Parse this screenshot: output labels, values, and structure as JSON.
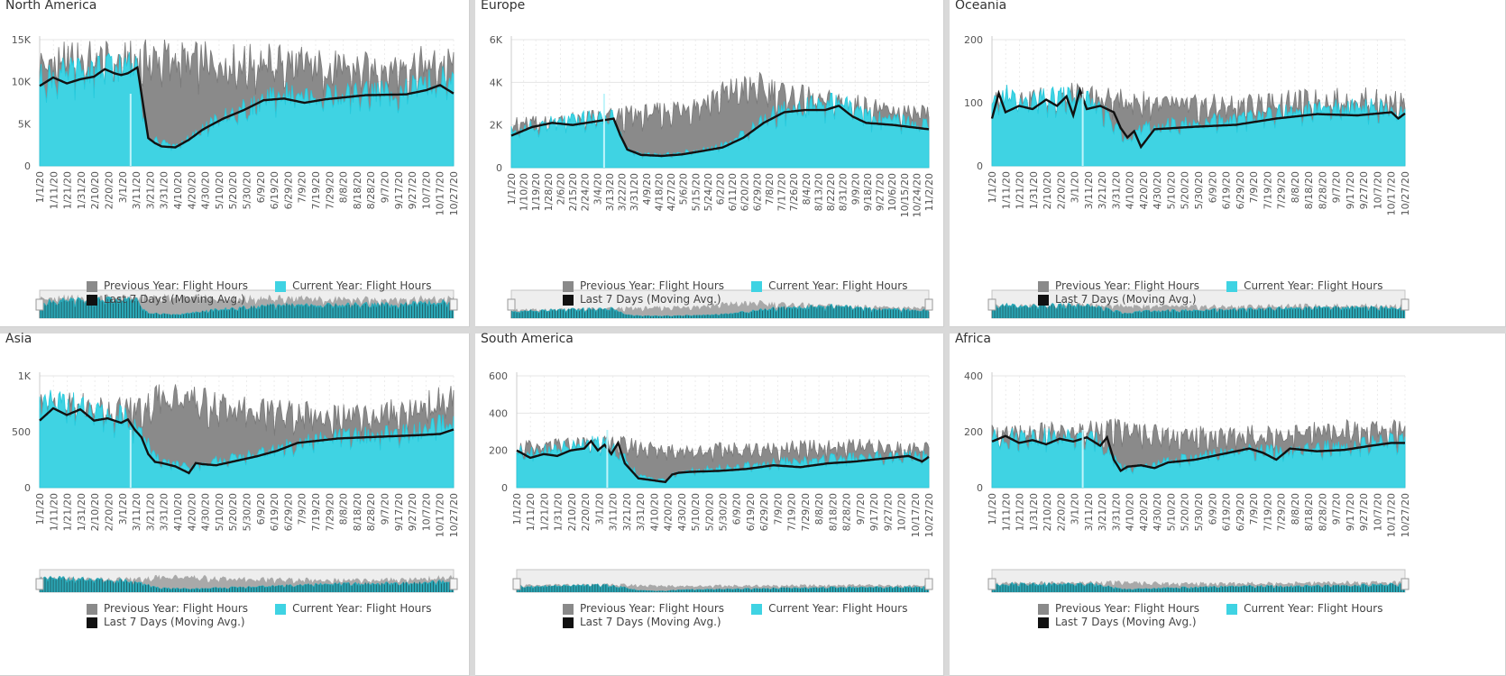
{
  "colors": {
    "previous": "#8a8a8a",
    "current": "#3fd3e3",
    "average": "#111111",
    "grid": "#e4e4e4",
    "navigator_bg": "#eeeeee"
  },
  "chart_data": [
    {
      "type": "area",
      "title": "North America",
      "y_ticks": [
        "0",
        "5K",
        "10K",
        "15K"
      ],
      "ylim": [
        0,
        15000
      ],
      "x_ticks": [
        "1/1/20",
        "1/11/20",
        "1/21/20",
        "1/31/20",
        "2/10/20",
        "2/20/20",
        "3/1/20",
        "3/11/20",
        "3/21/20",
        "3/31/20",
        "4/10/20",
        "4/20/20",
        "4/30/20",
        "5/10/20",
        "5/20/20",
        "5/30/20",
        "6/9/20",
        "6/19/20",
        "6/29/20",
        "7/9/20",
        "7/19/20",
        "7/29/20",
        "8/8/20",
        "8/18/20",
        "8/28/20",
        "9/7/20",
        "9/17/20",
        "9/27/20",
        "10/7/20",
        "10/17/20",
        "10/27/20"
      ],
      "days": 306,
      "series": [
        {
          "name": "Previous Year: Flight Hours",
          "x_day": [
            0,
            30,
            60,
            75,
            90,
            120,
            150,
            180,
            210,
            240,
            270,
            305
          ],
          "values": [
            11500,
            12000,
            11800,
            12000,
            12200,
            11800,
            11600,
            11700,
            11200,
            10900,
            11400,
            11300
          ]
        },
        {
          "name": "Current Year: Flight Hours",
          "x_day": [
            0,
            30,
            60,
            72,
            76,
            80,
            90,
            100,
            110,
            120,
            135,
            150,
            165,
            180,
            210,
            240,
            270,
            300,
            305
          ],
          "values": [
            9800,
            10800,
            11200,
            11800,
            7000,
            3200,
            2600,
            2300,
            3000,
            4200,
            5500,
            6400,
            7300,
            8200,
            7800,
            8300,
            8600,
            9700,
            9200
          ]
        },
        {
          "name": "Last 7 Days (Moving Avg.)",
          "x_day": [
            0,
            10,
            20,
            30,
            40,
            48,
            55,
            60,
            65,
            72,
            76,
            80,
            85,
            90,
            100,
            110,
            120,
            135,
            150,
            165,
            180,
            195,
            210,
            240,
            270,
            285,
            295,
            305
          ],
          "values": [
            9500,
            10500,
            9800,
            10300,
            10600,
            11500,
            11000,
            10800,
            11000,
            11700,
            7500,
            3300,
            2700,
            2300,
            2200,
            3100,
            4300,
            5600,
            6600,
            7800,
            8000,
            7500,
            7900,
            8400,
            8500,
            9000,
            9600,
            8600
          ]
        }
      ]
    },
    {
      "type": "area",
      "title": "Europe",
      "y_ticks": [
        "0",
        "2K",
        "4K",
        "6K"
      ],
      "ylim": [
        0,
        6000
      ],
      "x_ticks": [
        "1/1/20",
        "1/10/20",
        "1/19/20",
        "1/28/20",
        "2/6/20",
        "2/15/20",
        "2/24/20",
        "3/4/20",
        "3/13/20",
        "3/22/20",
        "3/31/20",
        "4/9/20",
        "4/18/20",
        "4/27/20",
        "5/6/20",
        "5/15/20",
        "5/24/20",
        "6/2/20",
        "6/11/20",
        "6/20/20",
        "6/29/20",
        "7/8/20",
        "7/17/20",
        "7/26/20",
        "8/4/20",
        "8/13/20",
        "8/22/20",
        "8/31/20",
        "9/9/20",
        "9/18/20",
        "9/27/20",
        "10/6/20",
        "10/15/20",
        "10/24/20",
        "11/2/20"
      ],
      "days": 307,
      "series": [
        {
          "name": "Previous Year: Flight Hours",
          "x_day": [
            0,
            30,
            60,
            80,
            100,
            120,
            140,
            160,
            180,
            200,
            220,
            240,
            260,
            280,
            306
          ],
          "values": [
            1900,
            2000,
            2200,
            2300,
            2400,
            2600,
            2900,
            3400,
            3600,
            3300,
            3000,
            2900,
            2700,
            2500,
            2300
          ]
        },
        {
          "name": "Current Year: Flight Hours",
          "x_day": [
            0,
            30,
            60,
            75,
            80,
            85,
            95,
            110,
            125,
            140,
            155,
            170,
            185,
            200,
            215,
            240,
            260,
            280,
            306
          ],
          "values": [
            1600,
            2000,
            2200,
            2300,
            1500,
            800,
            600,
            550,
            650,
            800,
            1000,
            1500,
            2200,
            2600,
            2700,
            2900,
            2300,
            2100,
            1900
          ]
        },
        {
          "name": "Last 7 Days (Moving Avg.)",
          "x_day": [
            0,
            15,
            30,
            45,
            55,
            65,
            75,
            80,
            85,
            95,
            110,
            125,
            140,
            155,
            170,
            185,
            200,
            215,
            230,
            240,
            250,
            260,
            280,
            306
          ],
          "values": [
            1500,
            1900,
            2100,
            2000,
            2100,
            2200,
            2300,
            1500,
            850,
            600,
            550,
            620,
            780,
            950,
            1400,
            2100,
            2600,
            2700,
            2700,
            2900,
            2400,
            2100,
            2000,
            1800
          ]
        }
      ]
    },
    {
      "type": "area",
      "title": "Oceania",
      "y_ticks": [
        "0",
        "100",
        "200"
      ],
      "ylim": [
        0,
        200
      ],
      "x_ticks": [
        "1/1/20",
        "1/11/20",
        "1/21/20",
        "1/31/20",
        "2/10/20",
        "2/20/20",
        "3/1/20",
        "3/11/20",
        "3/21/20",
        "3/31/20",
        "4/10/20",
        "4/20/20",
        "4/30/20",
        "5/10/20",
        "5/20/20",
        "5/30/20",
        "6/9/20",
        "6/19/20",
        "6/29/20",
        "7/9/20",
        "7/19/20",
        "7/29/20",
        "8/8/20",
        "8/18/20",
        "8/28/20",
        "9/7/20",
        "9/17/20",
        "9/27/20",
        "10/7/20",
        "10/17/20",
        "10/27/20"
      ],
      "days": 306,
      "series": [
        {
          "name": "Previous Year: Flight Hours",
          "x_day": [
            0,
            30,
            60,
            90,
            120,
            150,
            180,
            210,
            240,
            270,
            305
          ],
          "values": [
            95,
            100,
            105,
            100,
            95,
            90,
            92,
            95,
            98,
            100,
            95
          ]
        },
        {
          "name": "Current Year: Flight Hours",
          "x_day": [
            0,
            10,
            20,
            40,
            60,
            80,
            90,
            100,
            110,
            120,
            150,
            180,
            210,
            240,
            270,
            305
          ],
          "values": [
            85,
            110,
            95,
            100,
            105,
            90,
            60,
            45,
            55,
            60,
            65,
            70,
            80,
            85,
            90,
            80
          ]
        },
        {
          "name": "Last 7 Days (Moving Avg.)",
          "x_day": [
            0,
            5,
            10,
            20,
            30,
            40,
            48,
            55,
            60,
            65,
            70,
            80,
            90,
            95,
            100,
            105,
            110,
            120,
            150,
            180,
            210,
            240,
            270,
            295,
            300,
            305
          ],
          "values": [
            75,
            115,
            85,
            95,
            90,
            105,
            95,
            110,
            80,
            120,
            90,
            95,
            85,
            60,
            45,
            55,
            30,
            58,
            62,
            65,
            75,
            82,
            80,
            85,
            75,
            83
          ]
        }
      ]
    },
    {
      "type": "area",
      "title": "Asia",
      "y_ticks": [
        "0",
        "500",
        "1K"
      ],
      "ylim": [
        0,
        1000
      ],
      "x_ticks": [
        "1/1/20",
        "1/11/20",
        "1/21/20",
        "1/31/20",
        "2/10/20",
        "2/20/20",
        "3/1/20",
        "3/11/20",
        "3/21/20",
        "3/31/20",
        "4/10/20",
        "4/20/20",
        "4/30/20",
        "5/10/20",
        "5/20/20",
        "5/30/20",
        "6/9/20",
        "6/19/20",
        "6/29/20",
        "7/9/20",
        "7/19/20",
        "7/29/20",
        "8/8/20",
        "8/18/20",
        "8/28/20",
        "9/7/20",
        "9/17/20",
        "9/27/20",
        "10/7/20",
        "10/17/20",
        "10/27/20"
      ],
      "days": 306,
      "series": [
        {
          "name": "Previous Year: Flight Hours",
          "x_day": [
            0,
            30,
            60,
            80,
            90,
            110,
            130,
            160,
            190,
            220,
            250,
            280,
            305
          ],
          "values": [
            700,
            680,
            650,
            700,
            800,
            750,
            700,
            650,
            620,
            600,
            620,
            680,
            750
          ]
        },
        {
          "name": "Current Year: Flight Hours",
          "x_day": [
            0,
            20,
            40,
            60,
            75,
            85,
            100,
            110,
            130,
            160,
            190,
            220,
            250,
            280,
            305
          ],
          "values": [
            700,
            720,
            620,
            600,
            500,
            250,
            200,
            170,
            230,
            280,
            380,
            430,
            450,
            480,
            560
          ]
        },
        {
          "name": "Last 7 Days (Moving Avg.)",
          "x_day": [
            0,
            10,
            20,
            30,
            40,
            50,
            60,
            65,
            70,
            75,
            80,
            85,
            90,
            100,
            110,
            115,
            120,
            130,
            145,
            160,
            175,
            190,
            205,
            220,
            240,
            260,
            280,
            295,
            305
          ],
          "values": [
            600,
            710,
            650,
            700,
            600,
            620,
            580,
            610,
            520,
            450,
            300,
            230,
            220,
            190,
            130,
            220,
            210,
            200,
            240,
            280,
            330,
            400,
            420,
            440,
            450,
            460,
            470,
            480,
            520
          ]
        }
      ]
    },
    {
      "type": "area",
      "title": "South America",
      "y_ticks": [
        "0",
        "200",
        "400",
        "600"
      ],
      "ylim": [
        0,
        600
      ],
      "x_ticks": [
        "1/1/20",
        "1/11/20",
        "1/21/20",
        "1/31/20",
        "2/10/20",
        "2/20/20",
        "3/1/20",
        "3/11/20",
        "3/21/20",
        "3/31/20",
        "4/10/20",
        "4/20/20",
        "4/30/20",
        "5/10/20",
        "5/20/20",
        "5/30/20",
        "6/9/20",
        "6/19/20",
        "6/29/20",
        "7/9/20",
        "7/19/20",
        "7/29/20",
        "8/8/20",
        "8/18/20",
        "8/28/20",
        "9/7/20",
        "9/17/20",
        "9/27/20",
        "10/7/20",
        "10/17/20",
        "10/27/20"
      ],
      "days": 306,
      "series": [
        {
          "name": "Previous Year: Flight Hours",
          "x_day": [
            0,
            30,
            60,
            80,
            100,
            130,
            160,
            190,
            220,
            250,
            280,
            305
          ],
          "values": [
            200,
            210,
            230,
            220,
            200,
            190,
            195,
            200,
            205,
            210,
            200,
            195
          ]
        },
        {
          "name": "Current Year: Flight Hours",
          "x_day": [
            0,
            30,
            50,
            60,
            70,
            80,
            90,
            100,
            110,
            120,
            150,
            180,
            210,
            240,
            270,
            305
          ],
          "values": [
            180,
            200,
            220,
            230,
            200,
            150,
            60,
            50,
            40,
            80,
            100,
            120,
            140,
            150,
            160,
            170
          ]
        },
        {
          "name": "Last 7 Days (Moving Avg.)",
          "x_day": [
            0,
            10,
            20,
            30,
            40,
            50,
            55,
            60,
            65,
            70,
            75,
            80,
            85,
            90,
            100,
            110,
            115,
            120,
            130,
            150,
            170,
            190,
            210,
            230,
            250,
            270,
            290,
            300,
            305
          ],
          "values": [
            200,
            160,
            180,
            170,
            200,
            210,
            250,
            200,
            230,
            180,
            240,
            130,
            90,
            50,
            40,
            30,
            70,
            80,
            85,
            90,
            100,
            120,
            110,
            130,
            140,
            155,
            170,
            140,
            165
          ]
        }
      ]
    },
    {
      "type": "area",
      "title": "Africa",
      "y_ticks": [
        "0",
        "200",
        "400"
      ],
      "ylim": [
        0,
        400
      ],
      "x_ticks": [
        "1/1/20",
        "1/11/20",
        "1/21/20",
        "1/31/20",
        "2/10/20",
        "2/20/20",
        "3/1/20",
        "3/11/20",
        "3/21/20",
        "3/31/20",
        "4/10/20",
        "4/20/20",
        "4/30/20",
        "5/10/20",
        "5/20/20",
        "5/30/20",
        "6/9/20",
        "6/19/20",
        "6/29/20",
        "7/9/20",
        "7/19/20",
        "7/29/20",
        "8/8/20",
        "8/18/20",
        "8/28/20",
        "9/7/20",
        "9/17/20",
        "9/27/20",
        "10/7/20",
        "10/17/20",
        "10/27/20"
      ],
      "days": 306,
      "series": [
        {
          "name": "Previous Year: Flight Hours",
          "x_day": [
            0,
            30,
            60,
            80,
            100,
            130,
            160,
            190,
            220,
            250,
            280,
            305
          ],
          "values": [
            180,
            185,
            190,
            200,
            195,
            180,
            175,
            180,
            185,
            190,
            200,
            195
          ]
        },
        {
          "name": "Current Year: Flight Hours",
          "x_day": [
            0,
            30,
            60,
            80,
            90,
            100,
            110,
            130,
            160,
            190,
            220,
            250,
            280,
            305
          ],
          "values": [
            170,
            175,
            170,
            160,
            100,
            60,
            70,
            90,
            110,
            130,
            120,
            140,
            150,
            165
          ]
        },
        {
          "name": "Last 7 Days (Moving Avg.)",
          "x_day": [
            0,
            10,
            20,
            30,
            40,
            50,
            60,
            70,
            80,
            85,
            90,
            95,
            100,
            110,
            120,
            130,
            150,
            170,
            190,
            200,
            210,
            220,
            240,
            260,
            280,
            295,
            305
          ],
          "values": [
            165,
            185,
            160,
            170,
            155,
            175,
            165,
            180,
            150,
            180,
            100,
            60,
            75,
            80,
            70,
            90,
            100,
            120,
            140,
            125,
            100,
            140,
            130,
            135,
            150,
            160,
            160
          ]
        }
      ]
    }
  ],
  "legend": {
    "previous_label": "Previous Year: Flight Hours",
    "current_label": "Current Year: Flight Hours",
    "average_label": "Last 7 Days (Moving Avg.)"
  }
}
